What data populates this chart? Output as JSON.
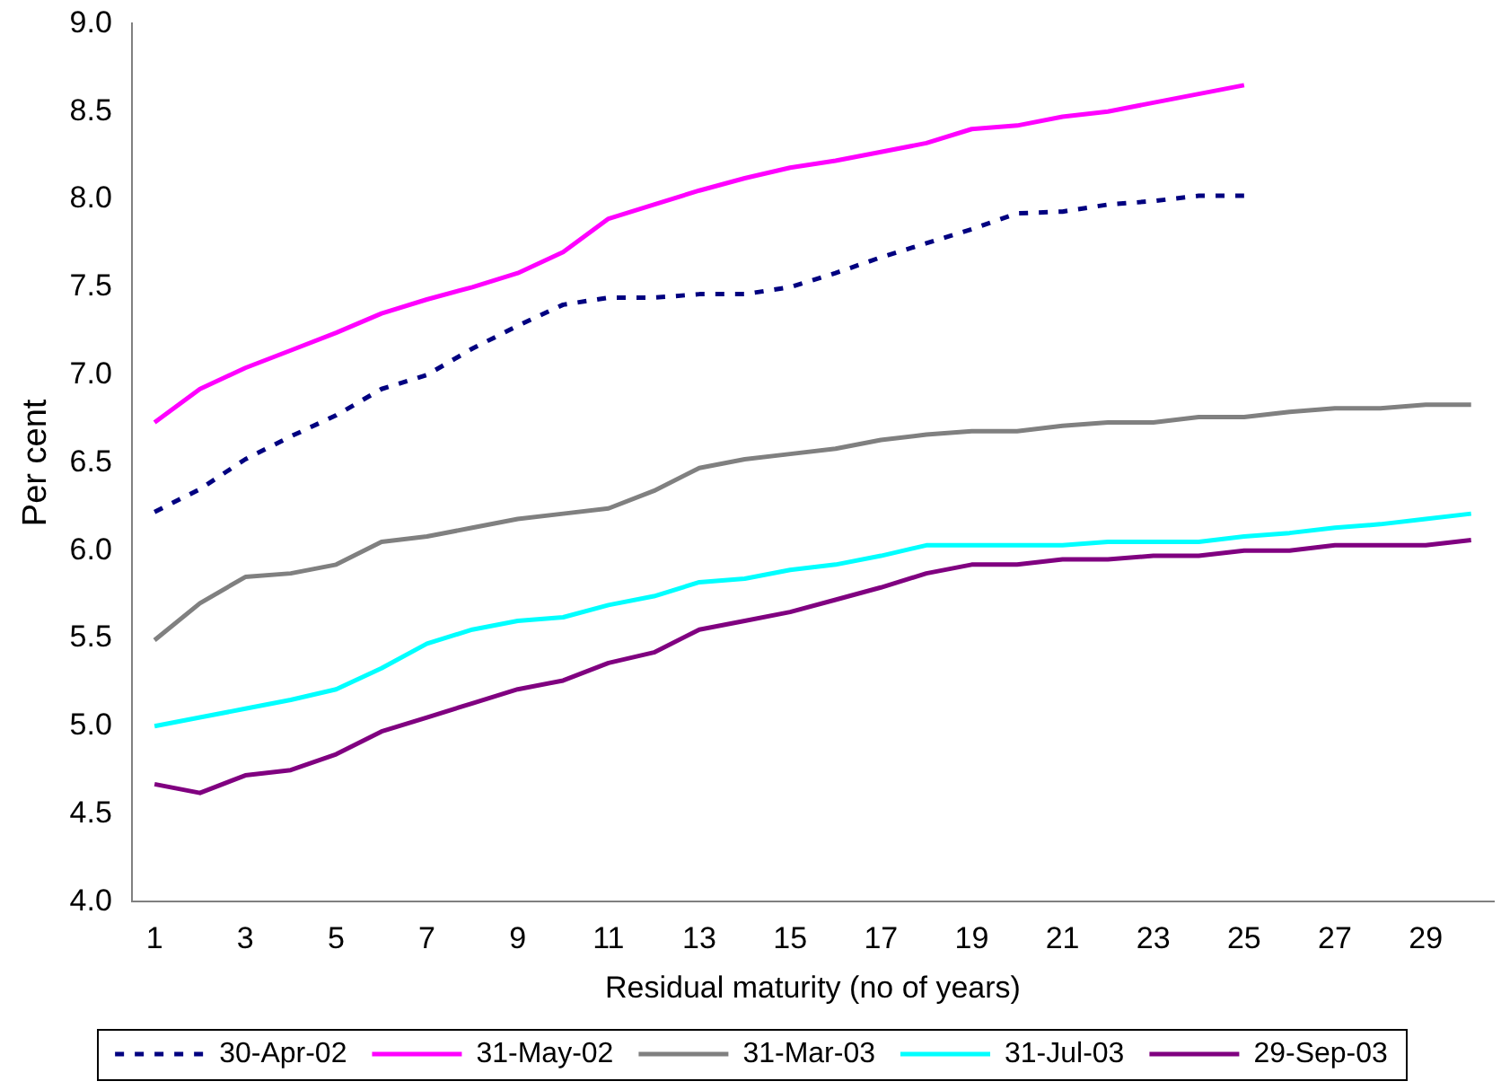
{
  "chart_data": {
    "type": "line",
    "xlabel": "Residual maturity (no of years)",
    "ylabel": "Per cent",
    "x": [
      1,
      2,
      3,
      4,
      5,
      6,
      7,
      8,
      9,
      10,
      11,
      12,
      13,
      14,
      15,
      16,
      17,
      18,
      19,
      20,
      21,
      22,
      23,
      24,
      25,
      26,
      27,
      28,
      29,
      30
    ],
    "xlim": [
      0.5,
      30.5
    ],
    "xticks": [
      1,
      3,
      5,
      7,
      9,
      11,
      13,
      15,
      17,
      19,
      21,
      23,
      25,
      27,
      29
    ],
    "ylim": [
      4,
      9
    ],
    "yticks": [
      {
        "value": 4,
        "label": "4.0"
      },
      {
        "value": 4.5,
        "label": "4.5"
      },
      {
        "value": 5,
        "label": "5.0"
      },
      {
        "value": 5.5,
        "label": "5.5"
      },
      {
        "value": 6,
        "label": "6.0"
      },
      {
        "value": 6.5,
        "label": "6.5"
      },
      {
        "value": 7,
        "label": "7.0"
      },
      {
        "value": 7.5,
        "label": "7.5"
      },
      {
        "value": 8,
        "label": "8.0"
      },
      {
        "value": 8.5,
        "label": "8.5"
      },
      {
        "value": 9,
        "label": "9.0"
      }
    ],
    "grid": false,
    "legend": "bottom",
    "marker": "none",
    "series": [
      {
        "name": "30-Apr-02",
        "color": "#000080",
        "line_style": "dashed",
        "values": [
          6.22,
          6.35,
          6.52,
          6.65,
          6.77,
          6.92,
          7.0,
          7.15,
          7.28,
          7.4,
          7.44,
          7.44,
          7.46,
          7.46,
          7.5,
          7.58,
          7.67,
          7.75,
          7.83,
          7.92,
          7.93,
          7.97,
          7.99,
          8.02,
          8.02,
          null,
          null,
          null,
          null,
          null
        ]
      },
      {
        "name": "31-May-02",
        "color": "#ff00ff",
        "line_style": "solid",
        "values": [
          6.73,
          6.92,
          7.04,
          7.14,
          7.24,
          7.35,
          7.43,
          7.5,
          7.58,
          7.7,
          7.89,
          7.97,
          8.05,
          8.12,
          8.18,
          8.22,
          8.27,
          8.32,
          8.4,
          8.42,
          8.47,
          8.5,
          8.55,
          8.6,
          8.65,
          null,
          null,
          null,
          null,
          null
        ]
      },
      {
        "name": "31-Mar-03",
        "color": "#808080",
        "line_style": "solid",
        "values": [
          5.49,
          5.7,
          5.85,
          5.87,
          5.92,
          6.05,
          6.08,
          6.13,
          6.18,
          6.21,
          6.24,
          6.34,
          6.47,
          6.52,
          6.55,
          6.58,
          6.63,
          6.66,
          6.68,
          6.68,
          6.71,
          6.73,
          6.73,
          6.76,
          6.76,
          6.79,
          6.81,
          6.81,
          6.83,
          6.83
        ]
      },
      {
        "name": "31-Jul-03",
        "color": "#00ffff",
        "line_style": "solid",
        "values": [
          5.0,
          5.05,
          5.1,
          5.15,
          5.21,
          5.33,
          5.47,
          5.55,
          5.6,
          5.62,
          5.69,
          5.74,
          5.82,
          5.84,
          5.89,
          5.92,
          5.97,
          6.03,
          6.03,
          6.03,
          6.03,
          6.05,
          6.05,
          6.05,
          6.08,
          6.1,
          6.13,
          6.15,
          6.18,
          6.21
        ]
      },
      {
        "name": "29-Sep-03",
        "color": "#800080",
        "line_style": "solid",
        "values": [
          4.67,
          4.62,
          4.72,
          4.75,
          4.84,
          4.97,
          5.05,
          5.13,
          5.21,
          5.26,
          5.36,
          5.42,
          5.55,
          5.6,
          5.65,
          5.72,
          5.79,
          5.87,
          5.92,
          5.92,
          5.95,
          5.95,
          5.97,
          5.97,
          6.0,
          6.0,
          6.03,
          6.03,
          6.03,
          6.06
        ]
      }
    ]
  }
}
